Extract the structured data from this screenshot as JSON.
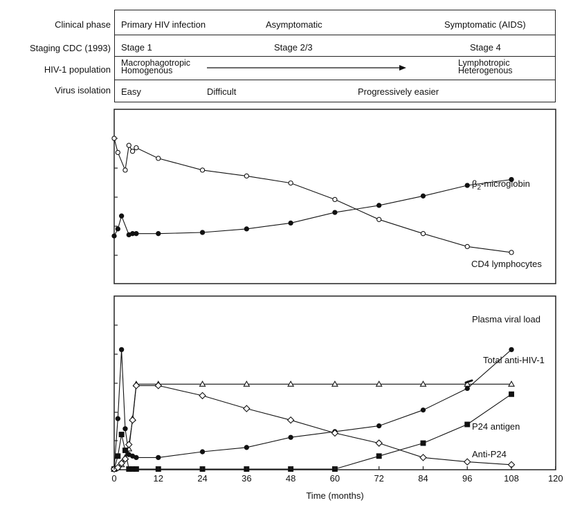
{
  "stages": {
    "rows": [
      {
        "label": "Clinical phase",
        "cells": [
          {
            "text": "Primary HIV infection"
          },
          {
            "text": "Asymptomatic"
          },
          {
            "text": "Symptomatic (AIDS)"
          }
        ]
      },
      {
        "label": "Staging CDC (1993)",
        "cells": [
          {
            "text": "Stage 1"
          },
          {
            "text": "Stage 2/3"
          },
          {
            "text": "Stage 4"
          }
        ]
      },
      {
        "label": "HIV-1 population",
        "cells": [
          {
            "line1": "Macrophagotropic",
            "line2": "Homogenous"
          },
          {
            "line1": "Lymphotropic",
            "line2": "Heterogenous"
          }
        ]
      },
      {
        "label": "Virus isolation",
        "cells": [
          {
            "text": "Easy"
          },
          {
            "text": "Difficult"
          },
          {
            "text": "Progressively easier"
          }
        ]
      }
    ]
  },
  "chart_data": [
    {
      "type": "line",
      "title": "",
      "xlabel": "",
      "ylabel": "",
      "xlim": [
        0,
        120
      ],
      "grid": false,
      "legend": "inline labels at line ends",
      "series": [
        {
          "name": "β2-microglobin",
          "marker": "filled-circle",
          "x": [
            0,
            1,
            2,
            4,
            5,
            6,
            12,
            24,
            36,
            48,
            60,
            72,
            84,
            96,
            108
          ],
          "y": [
            0.17,
            0.23,
            0.34,
            0.18,
            0.19,
            0.19,
            0.19,
            0.2,
            0.23,
            0.28,
            0.37,
            0.43,
            0.51,
            0.6,
            0.65
          ]
        },
        {
          "name": "CD4 lymphocytes",
          "marker": "open-circle",
          "x": [
            0,
            1,
            3,
            4,
            5,
            6,
            12,
            24,
            36,
            48,
            60,
            72,
            84,
            96,
            108
          ],
          "y": [
            1.0,
            0.88,
            0.73,
            0.94,
            0.89,
            0.92,
            0.83,
            0.73,
            0.68,
            0.62,
            0.48,
            0.31,
            0.19,
            0.08,
            0.03
          ]
        }
      ]
    },
    {
      "type": "line",
      "title": "",
      "xlabel": "Time (months)",
      "ylabel": "",
      "xlim": [
        0,
        120
      ],
      "xticks": [
        0,
        12,
        24,
        36,
        48,
        60,
        72,
        84,
        96,
        108,
        120
      ],
      "grid": false,
      "legend": "inline labels at line ends",
      "series": [
        {
          "name": "Plasma viral load",
          "marker": "filled-circle",
          "x": [
            0,
            1,
            2,
            3,
            4,
            5,
            6,
            12,
            24,
            36,
            48,
            60,
            72,
            84,
            96,
            108
          ],
          "y": [
            0.0,
            0.35,
            0.83,
            0.28,
            0.1,
            0.09,
            0.08,
            0.08,
            0.12,
            0.15,
            0.22,
            0.26,
            0.3,
            0.41,
            0.56,
            0.83
          ]
        },
        {
          "name": "Total anti-HIV-1",
          "marker": "open-triangle",
          "x": [
            0,
            1,
            2,
            3,
            4,
            5,
            6,
            12,
            24,
            36,
            48,
            60,
            72,
            84,
            96,
            108
          ],
          "y": [
            0.0,
            0.01,
            0.03,
            0.08,
            0.14,
            0.35,
            0.59,
            0.59,
            0.59,
            0.59,
            0.59,
            0.59,
            0.59,
            0.59,
            0.59,
            0.59
          ]
        },
        {
          "name": "P24 antigen",
          "marker": "filled-square",
          "x": [
            0,
            1,
            2,
            3,
            4,
            5,
            6,
            12,
            24,
            36,
            48,
            60,
            72,
            84,
            96,
            108
          ],
          "y": [
            0.0,
            0.09,
            0.24,
            0.13,
            0.0,
            0.0,
            0.0,
            0.0,
            0.0,
            0.0,
            0.0,
            0.0,
            0.09,
            0.18,
            0.31,
            0.52
          ]
        },
        {
          "name": "Anti-P24",
          "marker": "open-diamond",
          "x": [
            0,
            1,
            2,
            3,
            4,
            5,
            6,
            12,
            24,
            36,
            48,
            60,
            72,
            84,
            96,
            108
          ],
          "y": [
            0.0,
            0.01,
            0.04,
            0.07,
            0.17,
            0.34,
            0.58,
            0.58,
            0.51,
            0.42,
            0.34,
            0.25,
            0.18,
            0.08,
            0.05,
            0.03
          ]
        }
      ]
    }
  ]
}
